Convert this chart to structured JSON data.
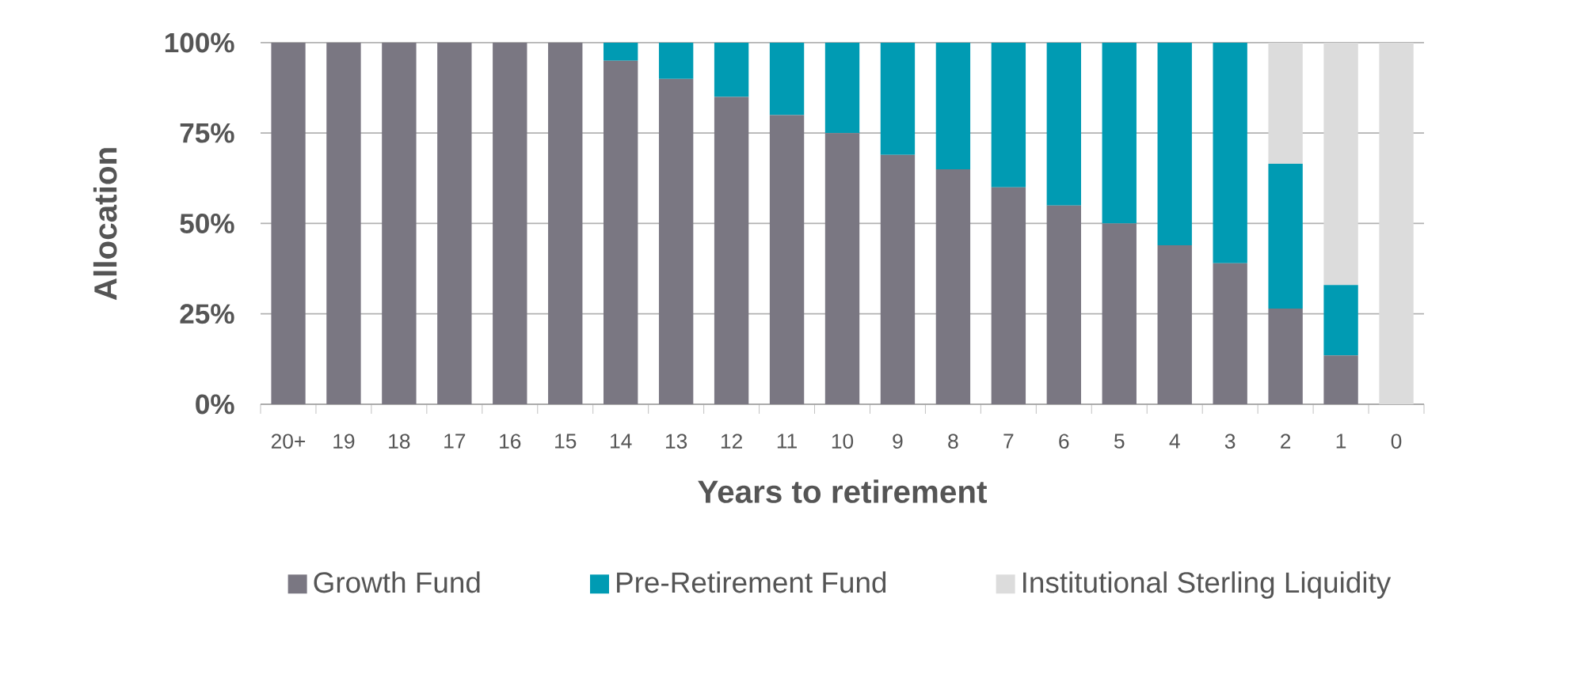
{
  "chart_data": {
    "type": "bar",
    "stacked": true,
    "xlabel": "Years to retirement",
    "ylabel": "Allocation",
    "categories": [
      "20+",
      "19",
      "18",
      "17",
      "16",
      "15",
      "14",
      "13",
      "12",
      "11",
      "10",
      "9",
      "8",
      "7",
      "6",
      "5",
      "4",
      "3",
      "2",
      "1",
      "0"
    ],
    "series": [
      {
        "name": "Growth Fund",
        "color": "#7a7782",
        "values": [
          100,
          100,
          100,
          100,
          100,
          100,
          95,
          90,
          85,
          80,
          75,
          69,
          65,
          60,
          55,
          50,
          44,
          39,
          26.5,
          13.5,
          0
        ]
      },
      {
        "name": "Pre-Retirement Fund",
        "color": "#009bb3",
        "values": [
          0,
          0,
          0,
          0,
          0,
          0,
          5,
          10,
          15,
          20,
          25,
          31,
          35,
          40,
          45,
          50,
          56,
          61,
          40,
          19.5,
          0
        ]
      },
      {
        "name": "Institutional Sterling Liquidity",
        "color": "#dcdcdc",
        "values": [
          0,
          0,
          0,
          0,
          0,
          0,
          0,
          0,
          0,
          0,
          0,
          0,
          0,
          0,
          0,
          0,
          0,
          0,
          33.5,
          67,
          100
        ]
      }
    ],
    "ylim": [
      0,
      100
    ],
    "yticks": [
      {
        "value": 0,
        "label": "0%"
      },
      {
        "value": 25,
        "label": "25%"
      },
      {
        "value": 50,
        "label": "50%"
      },
      {
        "value": 75,
        "label": "75%"
      },
      {
        "value": 100,
        "label": "100%"
      }
    ],
    "grid": "y",
    "legend": "bottom"
  }
}
